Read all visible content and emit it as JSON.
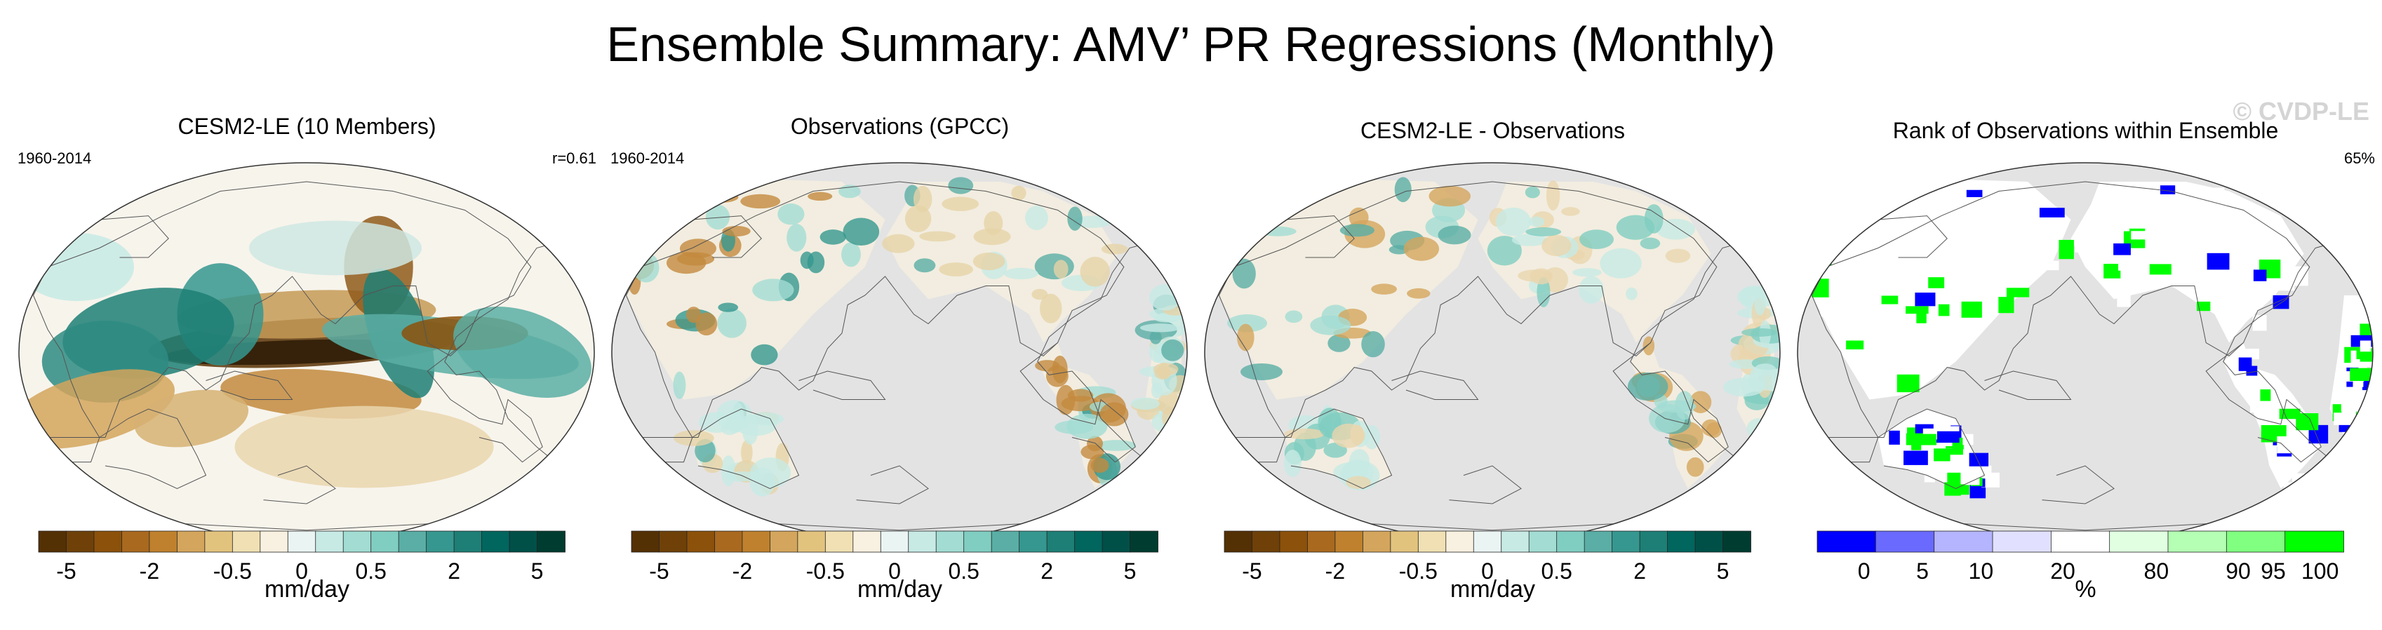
{
  "title": "Ensemble Summary: AMV’ PR Regressions (Monthly)",
  "watermark": "© CVDP-LE",
  "panels": [
    {
      "title": "CESM2-LE (10 Members)",
      "left_label": "1960-2014",
      "right_label": "r=0.61",
      "kind": "model"
    },
    {
      "title": "Observations (GPCC)",
      "left_label": "1960-2014",
      "right_label": "",
      "kind": "obs"
    },
    {
      "title": "CESM2-LE - Observations",
      "left_label": "",
      "right_label": "",
      "kind": "diff"
    },
    {
      "title": "Rank of Observations within Ensemble",
      "left_label": "",
      "right_label": "65%",
      "kind": "rank"
    }
  ],
  "chart_data": [
    {
      "type": "heatmap",
      "title": "CESM2-LE (10 Members)",
      "period": "1960-2014",
      "pattern_correlation": 0.61,
      "colorbar": {
        "units": "mm/day",
        "tick_labels": [
          "-5",
          "-2",
          "-0.5",
          "0",
          "0.5",
          "2",
          "5"
        ],
        "colors": [
          "#543005",
          "#6f4109",
          "#8c510a",
          "#a9691f",
          "#bf812d",
          "#d4a55c",
          "#e2c37e",
          "#f0e0b4",
          "#f8f0e0",
          "#eaf4f3",
          "#c7eae5",
          "#a2dcd3",
          "#80cdc1",
          "#5aaea5",
          "#35978f",
          "#1d7f76",
          "#01665e",
          "#005048",
          "#003c30"
        ]
      }
    },
    {
      "type": "heatmap",
      "title": "Observations (GPCC)",
      "period": "1960-2014",
      "colorbar": {
        "units": "mm/day",
        "tick_labels": [
          "-5",
          "-2",
          "-0.5",
          "0",
          "0.5",
          "2",
          "5"
        ],
        "colors": [
          "#543005",
          "#6f4109",
          "#8c510a",
          "#a9691f",
          "#bf812d",
          "#d4a55c",
          "#e2c37e",
          "#f0e0b4",
          "#f8f0e0",
          "#eaf4f3",
          "#c7eae5",
          "#a2dcd3",
          "#80cdc1",
          "#5aaea5",
          "#35978f",
          "#1d7f76",
          "#01665e",
          "#005048",
          "#003c30"
        ]
      }
    },
    {
      "type": "heatmap",
      "title": "CESM2-LE - Observations",
      "colorbar": {
        "units": "mm/day",
        "tick_labels": [
          "-5",
          "-2",
          "-0.5",
          "0",
          "0.5",
          "2",
          "5"
        ],
        "colors": [
          "#543005",
          "#6f4109",
          "#8c510a",
          "#a9691f",
          "#bf812d",
          "#d4a55c",
          "#e2c37e",
          "#f0e0b4",
          "#f8f0e0",
          "#eaf4f3",
          "#c7eae5",
          "#a2dcd3",
          "#80cdc1",
          "#5aaea5",
          "#35978f",
          "#1d7f76",
          "#01665e",
          "#005048",
          "#003c30"
        ]
      }
    },
    {
      "type": "heatmap",
      "title": "Rank of Observations within Ensemble",
      "within_ensemble_spread_percent": 65,
      "colorbar": {
        "units": "%",
        "tick_labels": [
          "0",
          "5",
          "10",
          "20",
          "80",
          "90",
          "95",
          "100"
        ],
        "colors": [
          "#0000ff",
          "#6a6aff",
          "#b4b4ff",
          "#e1e1ff",
          "#ffffff",
          "#e1ffe1",
          "#b4ffb4",
          "#80ff80",
          "#00ff00"
        ]
      }
    }
  ]
}
